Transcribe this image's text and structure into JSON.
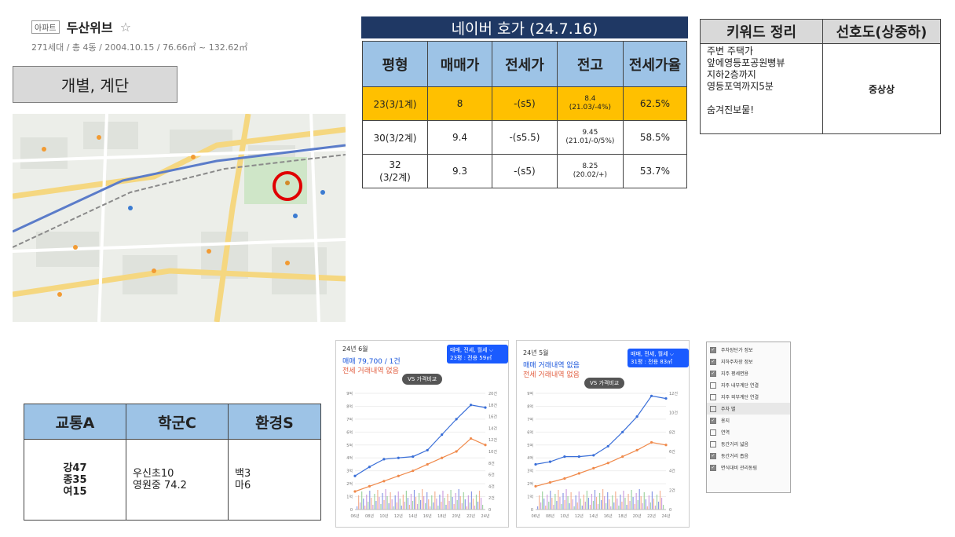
{
  "apt": {
    "badge": "아파트",
    "name": "두산위브",
    "star": "☆",
    "meta": "271세대 / 총 4동 / 2004.10.15 / 76.66㎡ ~ 132.62㎡"
  },
  "type_box": "개별, 계단",
  "map": {
    "icon": "map-marker-icon"
  },
  "price_table": {
    "title": "네이버 호가 (24.7.16)",
    "headers": [
      "평형",
      "매매가",
      "전세가",
      "전고",
      "전세가율"
    ],
    "rows": [
      {
        "type": "23(3/1계)",
        "sale": "8",
        "jeonse": "-(s5)",
        "high": "8.4\n(21.03/-4%)",
        "ratio": "62.5%",
        "highlight": true
      },
      {
        "type": "30(3/2계)",
        "sale": "9.4",
        "jeonse": "-(s5.5)",
        "high": "9.45\n(21.01/-0/5%)",
        "ratio": "58.5%",
        "highlight": false
      },
      {
        "type": "32\n(3/2계)",
        "sale": "9.3",
        "jeonse": "-(s5)",
        "high": "8.25\n(20.02/+)",
        "ratio": "53.7%",
        "highlight": false
      }
    ]
  },
  "keyword_table": {
    "headers": [
      "키워드 정리",
      "선호도(상중하)"
    ],
    "keywords": "주변 주택가\n앞에영등포공원뻥뷰\n지하2층까지\n영등포역까지5분\n\n숨겨진보물!",
    "preference": "중상상"
  },
  "score_table": {
    "headers": [
      "교통A",
      "학군C",
      "환경S"
    ],
    "transport": "강47\n종35\n여15",
    "school": "우신초10\n영원중 74.2",
    "env": "백3\n마6"
  },
  "charts": [
    {
      "month": "24년 6월",
      "line1": "매매 79,700 / 1건",
      "line2": "전세 거래내역 없음",
      "selector": "매매, 전세, 월세 ⌵",
      "size": "23평 : 전용 59㎡",
      "pill": "VS 가격비교",
      "chart_data": {
        "type": "line",
        "x": [
          "06년",
          "08년",
          "10년",
          "12년",
          "14년",
          "16년",
          "18년",
          "20년",
          "22년",
          "24년"
        ],
        "yleft_ticks": [
          "0",
          "1억",
          "2억",
          "3억",
          "4억",
          "5억",
          "6억",
          "7억",
          "8억",
          "9억"
        ],
        "yright_ticks": [
          "0",
          "2건",
          "4건",
          "6건",
          "8건",
          "10건",
          "12건",
          "14건",
          "16건",
          "18건",
          "20건"
        ],
        "series": [
          {
            "values": [
              2.6,
              3.3,
              3.9,
              4.0,
              4.1,
              4.6,
              5.8,
              7.0,
              8.1,
              7.9
            ],
            "color": "#3a6fd8"
          },
          {
            "values": [
              1.4,
              1.8,
              2.2,
              2.6,
              3.0,
              3.5,
              4.0,
              4.5,
              5.5,
              5.0
            ],
            "color": "#f08a4b"
          }
        ]
      }
    },
    {
      "month": "24년 5월",
      "line1": "매매 거래내역 없음",
      "line2": "전세 거래내역 없음",
      "selector": "매매, 전세, 월세 ⌵",
      "size": "31평 : 전용 83㎡",
      "pill": "VS 가격비교",
      "chart_data": {
        "type": "line",
        "x": [
          "06년",
          "08년",
          "10년",
          "12년",
          "14년",
          "16년",
          "18년",
          "20년",
          "22년",
          "24년"
        ],
        "yleft_ticks": [
          "0",
          "1억",
          "2억",
          "3억",
          "4억",
          "5억",
          "6억",
          "7억",
          "8억",
          "9억"
        ],
        "yright_ticks": [
          "0",
          "2건",
          "4건",
          "6건",
          "8건",
          "10건",
          "12건"
        ],
        "series": [
          {
            "values": [
              3.5,
              3.7,
              4.1,
              4.1,
              4.2,
              4.9,
              6.0,
              7.2,
              8.8,
              8.6
            ],
            "color": "#3a6fd8"
          },
          {
            "values": [
              1.8,
              2.1,
              2.4,
              2.8,
              3.2,
              3.6,
              4.1,
              4.6,
              5.2,
              5.0
            ],
            "color": "#f08a4b"
          }
        ]
      }
    }
  ],
  "checklist": [
    {
      "label": "주차장단가 정보",
      "checked": true
    },
    {
      "label": "지하주차장 정보",
      "checked": true
    },
    {
      "label": "지주 평세면용",
      "checked": true
    },
    {
      "label": "지주 내부계단 연결",
      "checked": false
    },
    {
      "label": "지주 외부계단 연결",
      "checked": false
    },
    {
      "label": "주차 별",
      "checked": false,
      "selected": true
    },
    {
      "label": "용지",
      "checked": true
    },
    {
      "label": "연역",
      "checked": false
    },
    {
      "label": "동간거리 넓음",
      "checked": false
    },
    {
      "label": "동간거리 좁음",
      "checked": true
    },
    {
      "label": "면식대비 관리동림",
      "checked": true
    }
  ]
}
